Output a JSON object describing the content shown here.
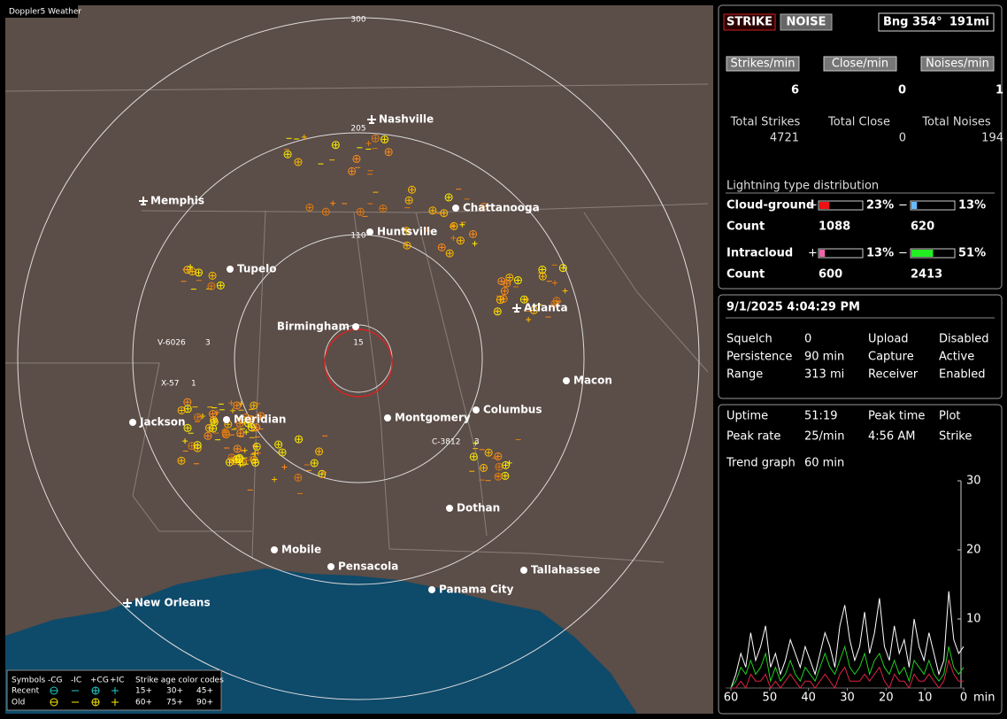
{
  "map": {
    "title": "Doppler5 Weather",
    "range_labels": [
      "300",
      "205",
      "110",
      "15"
    ],
    "cities": [
      "Nashville",
      "Chattanooga",
      "Memphis",
      "Huntsville",
      "Tupelo",
      "Atlanta",
      "Birmingham",
      "Macon",
      "Meridian",
      "Jackson",
      "Montgomery",
      "Columbus",
      "Dothan",
      "Mobile",
      "Pensacola",
      "Tallahassee",
      "Panama City",
      "New Orleans"
    ],
    "storms": [
      {
        "id": "V-6026",
        "count": 3
      },
      {
        "id": "X-57",
        "count": 1
      },
      {
        "id": "C-3812",
        "count": 3
      }
    ],
    "legend": {
      "symbols": "Symbols",
      "types": [
        "-CG",
        "-IC",
        "+CG",
        "+IC"
      ],
      "age_title": "Strike age color codes",
      "rows": [
        "Recent",
        "Old"
      ],
      "ages": [
        [
          "15+",
          "30+",
          "45+"
        ],
        [
          "60+",
          "75+",
          "90+"
        ]
      ]
    }
  },
  "panel": {
    "mode_buttons": [
      "STRIKE",
      "NOISE"
    ],
    "bearing": "Bng 354°",
    "distance": "191mi",
    "rates": [
      {
        "button": "Strikes/min",
        "value": 6,
        "total_label": "Total Strikes",
        "total": 4721
      },
      {
        "button": "Close/min",
        "value": 0,
        "total_label": "Total Close",
        "total": 0
      },
      {
        "button": "Noises/min",
        "value": 1,
        "total_label": "Total Noises",
        "total": 194
      }
    ],
    "distribution": {
      "title": "Lightning type distribution",
      "count_label": "Count",
      "rows": [
        {
          "name": "Cloud-ground",
          "plus": "+",
          "minus": "−",
          "plus_pct": {
            "value": 23,
            "label": "23%"
          },
          "minus_pct": {
            "value": 13,
            "label": "13%"
          },
          "plus_count": 1088,
          "minus_count": 620
        },
        {
          "name": "Intracloud",
          "plus": "+",
          "minus": "−",
          "plus_pct": {
            "value": 13,
            "label": "13%"
          },
          "minus_pct": {
            "value": 51,
            "label": "51%"
          },
          "plus_count": 600,
          "minus_count": 2413
        }
      ]
    },
    "datetime": "9/1/2025 4:04:29 PM",
    "settings": [
      [
        "Squelch",
        "0",
        "Upload",
        "Disabled"
      ],
      [
        "Persistence",
        "90 min",
        "Capture",
        "Active"
      ],
      [
        "Range",
        "313 mi",
        "Receiver",
        "Enabled"
      ]
    ],
    "stats": [
      [
        "Uptime",
        "51:19",
        "Peak time",
        "Plot"
      ],
      [
        "Peak rate",
        "25/min",
        "4:56 AM",
        "Strike"
      ]
    ],
    "trend_label": "Trend graph",
    "trend_span": "60 min"
  },
  "trend": {
    "type": "line",
    "xlim": [
      60,
      0
    ],
    "xticks": [
      60,
      50,
      40,
      30,
      20,
      10,
      0
    ],
    "x_unit": "min",
    "ylim": [
      0,
      30
    ],
    "yticks": [
      10,
      20,
      30
    ],
    "series": [
      {
        "color": "#ffffff",
        "values": [
          0,
          2,
          5,
          3,
          8,
          4,
          6,
          9,
          3,
          5,
          2,
          4,
          7,
          5,
          3,
          6,
          4,
          2,
          5,
          8,
          6,
          3,
          9,
          12,
          7,
          4,
          6,
          11,
          5,
          8,
          13,
          6,
          4,
          9,
          5,
          7,
          3,
          10,
          6,
          4,
          8,
          5,
          2,
          4,
          14,
          7,
          5,
          6
        ]
      },
      {
        "color": "#22cc22",
        "values": [
          0,
          1,
          3,
          2,
          4,
          2,
          3,
          5,
          1,
          3,
          1,
          2,
          4,
          2,
          1,
          3,
          2,
          1,
          3,
          5,
          3,
          2,
          4,
          6,
          3,
          2,
          3,
          5,
          2,
          4,
          5,
          3,
          2,
          4,
          2,
          3,
          1,
          4,
          3,
          2,
          4,
          2,
          1,
          2,
          6,
          3,
          2,
          3
        ]
      },
      {
        "color": "#dd2244",
        "values": [
          0,
          0,
          1,
          0,
          2,
          1,
          1,
          2,
          0,
          1,
          0,
          1,
          2,
          1,
          0,
          1,
          1,
          0,
          1,
          2,
          1,
          0,
          2,
          3,
          1,
          1,
          1,
          2,
          1,
          2,
          3,
          1,
          0,
          2,
          1,
          1,
          0,
          2,
          1,
          1,
          2,
          1,
          0,
          1,
          4,
          2,
          1,
          1
        ]
      }
    ]
  }
}
